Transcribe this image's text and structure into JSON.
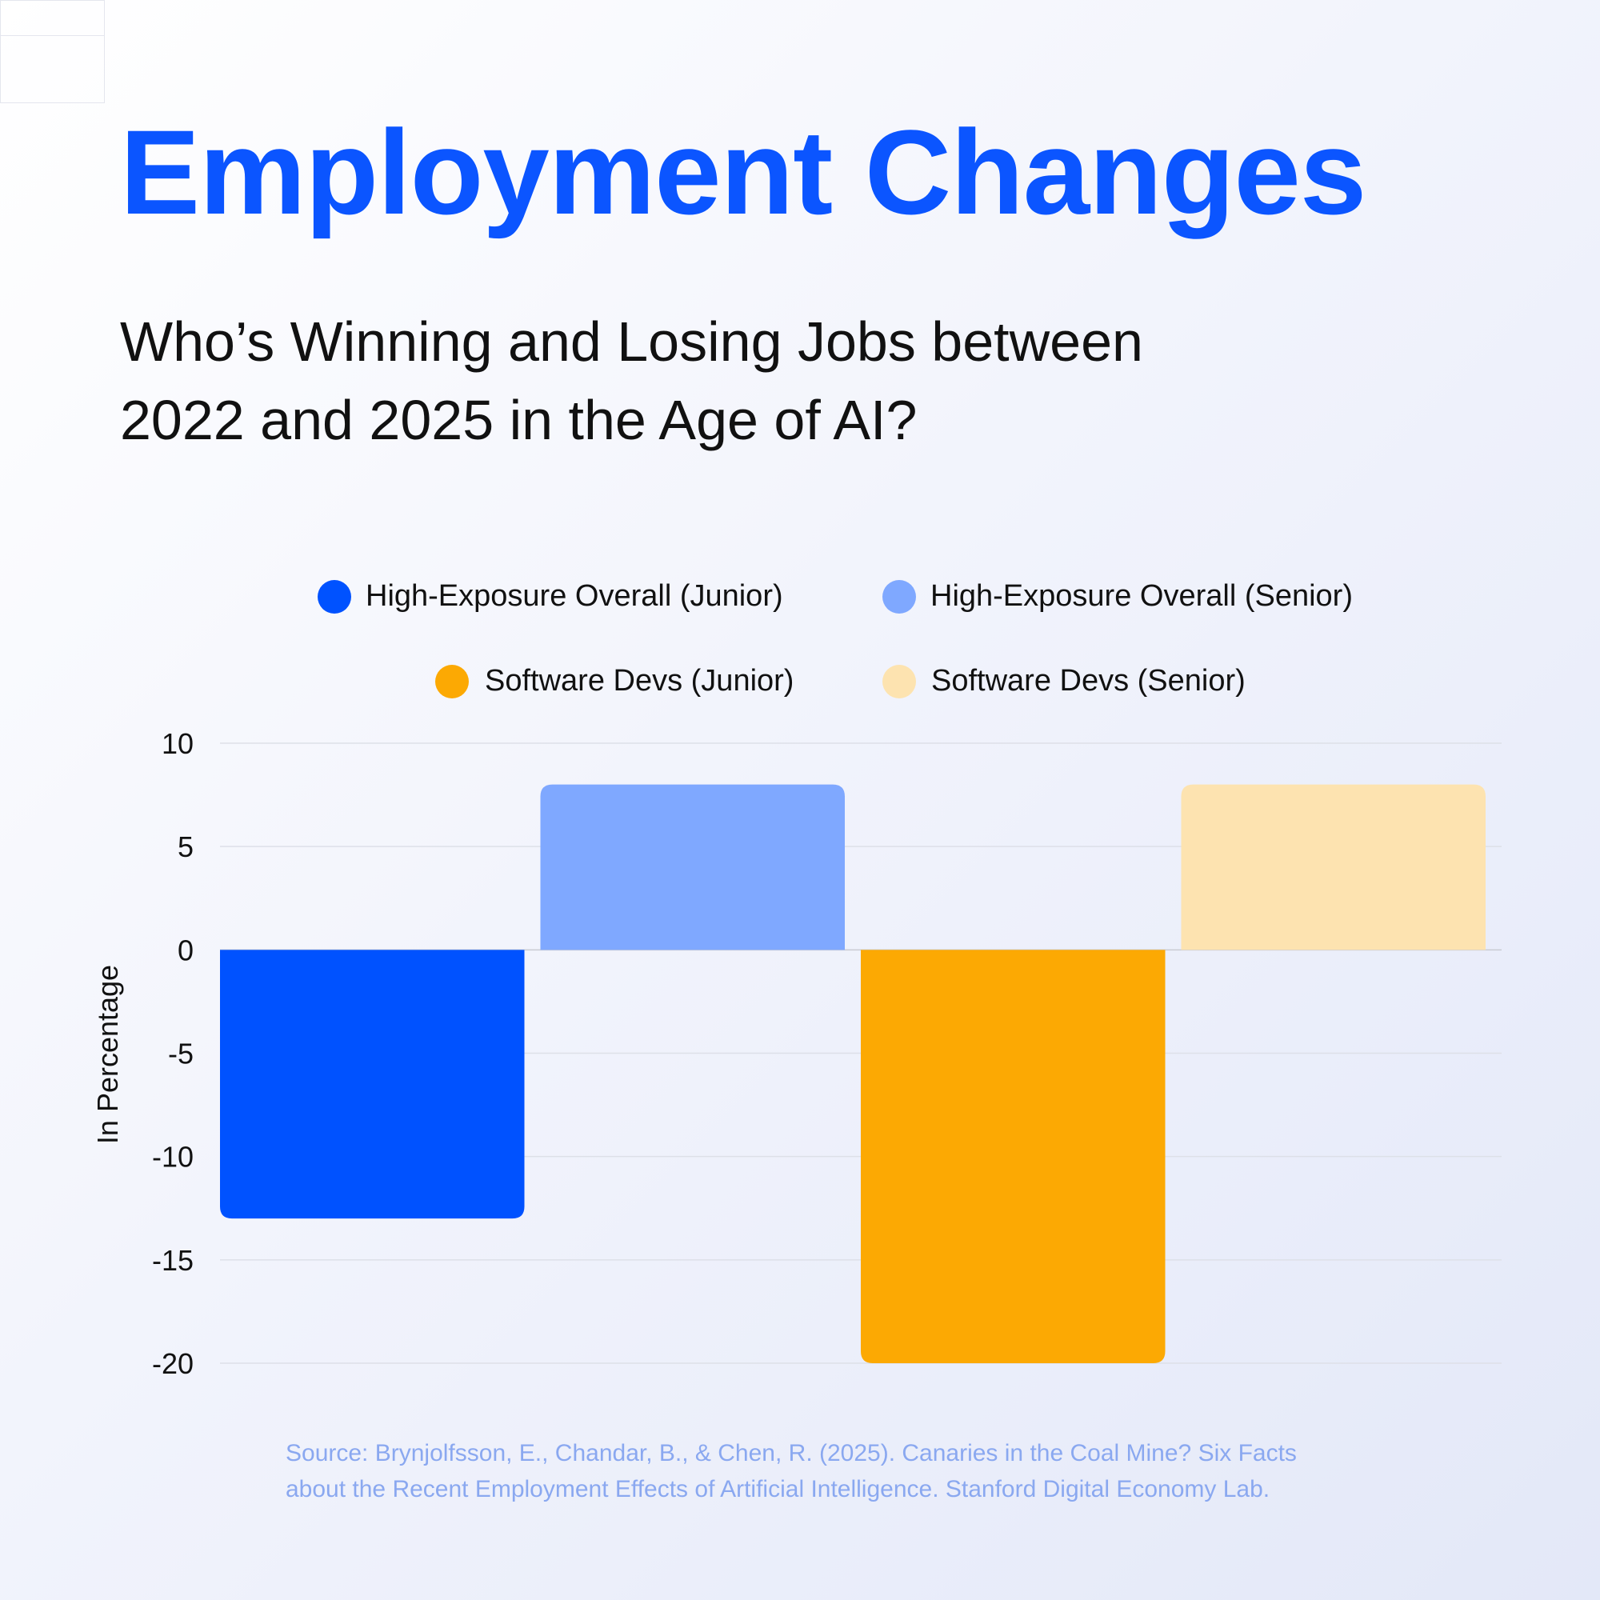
{
  "title": "Employment Changes",
  "subtitle": {
    "line1": "Who’s Winning and Losing Jobs between",
    "line2": "2022 and 2025 in the Age of AI?"
  },
  "source": {
    "line1": "Source: Brynjolfsson, E., Chandar, B., & Chen, R. (2025). Canaries in the Coal Mine? Six Facts",
    "line2": "about the Recent Employment Effects of Artificial Intelligence. Stanford Digital Economy Lab."
  },
  "chart_data": {
    "type": "bar",
    "ylabel": "In Percentage",
    "ylim": [
      -20,
      10
    ],
    "yticks": [
      10,
      5,
      0,
      -5,
      -10,
      -15,
      -20
    ],
    "grid": true,
    "legend_position": "top",
    "series": [
      {
        "name": "High-Exposure Overall (Junior)",
        "value": -13,
        "color": "#0052ff"
      },
      {
        "name": "High-Exposure Overall (Senior)",
        "value": 8,
        "color": "#7fa8ff"
      },
      {
        "name": "Software Devs (Junior)",
        "value": -20,
        "color": "#fca903"
      },
      {
        "name": "Software Devs (Senior)",
        "value": 8,
        "color": "#fde3b0"
      }
    ]
  }
}
